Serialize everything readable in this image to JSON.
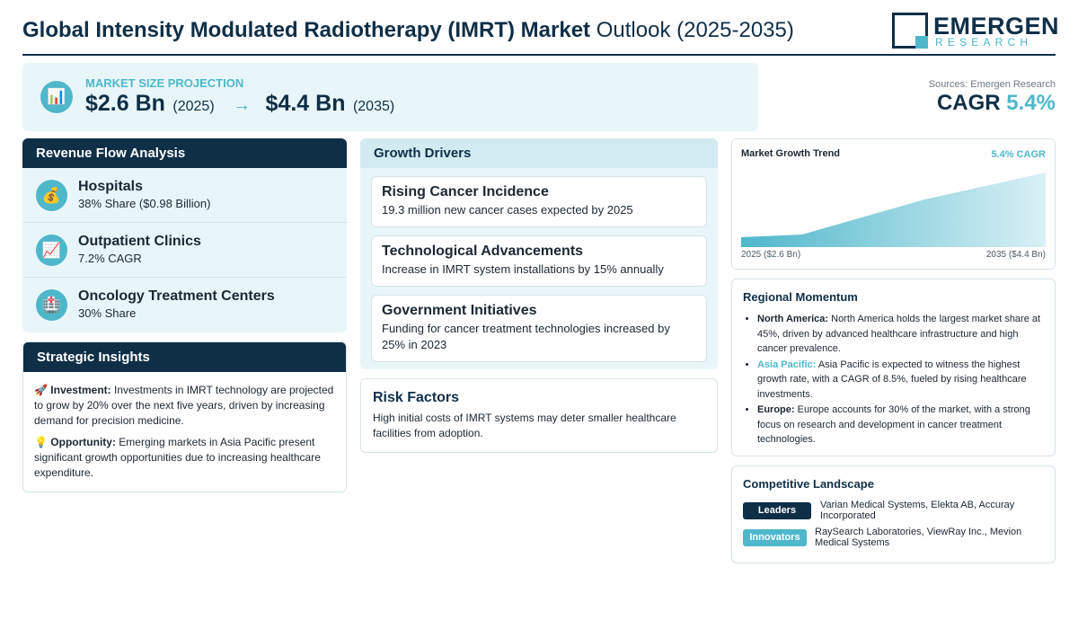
{
  "header": {
    "title_bold": "Global Intensity Modulated Radiotherapy (IMRT) Market",
    "title_light": "Outlook (2025-2035)",
    "logo_line1": "EMERGEN",
    "logo_line2": "RESEARCH"
  },
  "market_size": {
    "label": "MARKET SIZE PROJECTION",
    "icon": "bar-chart-icon",
    "start_value": "$2.6 Bn",
    "start_year": "(2025)",
    "arrow": "→",
    "end_value": "$4.4 Bn",
    "end_year": "(2035)"
  },
  "summary": {
    "sources": "Sources: Emergen Research",
    "cagr_label": "CAGR",
    "cagr_value": "5.4%"
  },
  "revenue_flow": {
    "title": "Revenue Flow Analysis",
    "items": [
      {
        "name": "Hospitals",
        "detail": "38% Share ($0.98 Billion)",
        "icon": "money-bag-icon",
        "glyph": "💰"
      },
      {
        "name": "Outpatient Clinics",
        "detail": "7.2% CAGR",
        "icon": "trend-chart-icon",
        "glyph": "📈"
      },
      {
        "name": "Oncology Treatment Centers",
        "detail": "30% Share",
        "icon": "hospital-icon",
        "glyph": "🏥"
      }
    ]
  },
  "strategic_insights": {
    "title": "Strategic Insights",
    "items": [
      {
        "icon": "rocket-icon",
        "glyph": "🚀",
        "label": "Investment:",
        "text": "Investments in IMRT technology are projected to grow by 20% over the next five years, driven by increasing demand for precision medicine."
      },
      {
        "icon": "lightbulb-icon",
        "glyph": "💡",
        "label": "Opportunity:",
        "text": "Emerging markets in Asia Pacific present significant growth opportunities due to increasing healthcare expenditure."
      }
    ]
  },
  "growth_drivers": {
    "title": "Growth Drivers",
    "items": [
      {
        "name": "Rising Cancer Incidence",
        "text": "19.3 million new cancer cases expected by 2025"
      },
      {
        "name": "Technological Advancements",
        "text": "Increase in IMRT system installations by 15% annually"
      },
      {
        "name": "Government Initiatives",
        "text": "Funding for cancer treatment technologies increased by 25% in 2023"
      }
    ]
  },
  "risk_factors": {
    "title": "Risk Factors",
    "text": "High initial costs of IMRT systems may deter smaller healthcare facilities from adoption."
  },
  "market_trend": {
    "title": "Market Growth Trend",
    "cagr_label": "5.4% CAGR",
    "start_label": "2025 ($2.6 Bn)",
    "end_label": "2035 ($4.4 Bn)",
    "gradient_start": "#4fb7ca",
    "gradient_end": "#d9f0f5"
  },
  "chart_data": {
    "type": "area",
    "x": [
      "2025",
      "2035"
    ],
    "values": [
      2.6,
      4.4
    ],
    "title": "Market Growth Trend",
    "xlabel": "",
    "ylabel": "",
    "grid": false
  },
  "regional_momentum": {
    "title": "Regional Momentum",
    "items": [
      {
        "region": "North America:",
        "text": "North America holds the largest market share at 45%, driven by advanced healthcare infrastructure and high cancer prevalence."
      },
      {
        "region": "Asia Pacific:",
        "text": "Asia Pacific is expected to witness the highest growth rate, with a CAGR of 8.5%, fueled by rising healthcare investments."
      },
      {
        "region": "Europe:",
        "text": "Europe accounts for 30% of the market, with a strong focus on research and development in cancer treatment technologies."
      }
    ]
  },
  "competitive_landscape": {
    "title": "Competitive Landscape",
    "leaders_label": "Leaders",
    "leaders": "Varian Medical Systems, Elekta AB, Accuray Incorporated",
    "innovators_label": "Innovators",
    "innovators": "RaySearch Laboratories, ViewRay Inc., Mevion Medical Systems"
  },
  "colors": {
    "navy": "#0f2f47",
    "teal": "#4fb7ca",
    "light_bg": "#e9f6f9"
  }
}
